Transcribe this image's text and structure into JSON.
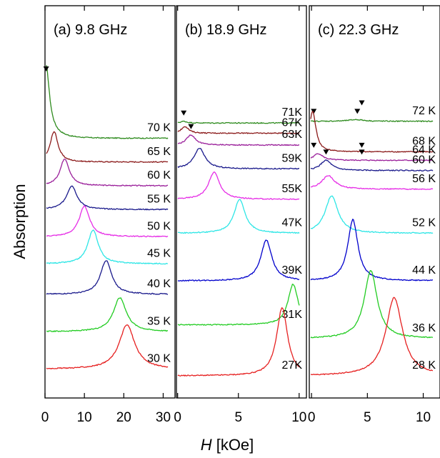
{
  "chart_data": {
    "type": "line",
    "ylabel": "Absorption",
    "xlabel_italic": "H",
    "xlabel_unit": " [kOe]",
    "colors": [
      "#2e8b1e",
      "#8b1a1a",
      "#9a1f9a",
      "#1a1a8c",
      "#e62ee6",
      "#2ee6e6",
      "#0000cc",
      "#22cc22",
      "#e62020"
    ],
    "panels": [
      {
        "title": "(a) 9.8 GHz",
        "xlim": [
          0,
          33
        ],
        "xticks": [
          "0",
          "10",
          "20",
          "30"
        ],
        "xtick_values": [
          0,
          10,
          20,
          30
        ],
        "series": [
          {
            "label": "70 K",
            "color": "#2e8b1e",
            "peak": 0.3,
            "width": 1.0,
            "amp": 0.18,
            "offset": 0.74,
            "tail": 0.04,
            "marker": 0.3
          },
          {
            "label": "65 K",
            "color": "#8b1a1a",
            "peak": 2.3,
            "width": 1.2,
            "amp": 0.09,
            "offset": 0.67
          },
          {
            "label": "60 K",
            "color": "#9a1f9a",
            "peak": 5.0,
            "width": 1.4,
            "amp": 0.08,
            "offset": 0.6
          },
          {
            "label": "55 K",
            "color": "#1a1a8c",
            "peak": 6.8,
            "width": 1.6,
            "amp": 0.07,
            "offset": 0.53
          },
          {
            "label": "50 K",
            "color": "#e62ee6",
            "peak": 10.0,
            "width": 1.6,
            "amp": 0.09,
            "offset": 0.45
          },
          {
            "label": "45 K",
            "color": "#2ee6e6",
            "peak": 12.2,
            "width": 1.6,
            "amp": 0.1,
            "offset": 0.37
          },
          {
            "label": "40 K",
            "color": "#1a1a8c",
            "peak": 15.5,
            "width": 1.7,
            "amp": 0.1,
            "offset": 0.28
          },
          {
            "label": "35 K",
            "color": "#22cc22",
            "peak": 19.0,
            "width": 2.0,
            "amp": 0.1,
            "offset": 0.17
          },
          {
            "label": "30 K",
            "color": "#e62020",
            "peak": 20.8,
            "width": 2.4,
            "amp": 0.13,
            "offset": 0.06
          }
        ]
      },
      {
        "title": "(b) 18.9 GHz",
        "xlim": [
          -0.1,
          10.6
        ],
        "xticks": [
          "0",
          "5",
          "10"
        ],
        "xtick_values": [
          0,
          5,
          10
        ],
        "series": [
          {
            "label": "71K",
            "color": "#2e8b1e",
            "peak": 0.5,
            "width": 0.3,
            "amp": 0.005,
            "offset": 0.785,
            "marker": 0.5
          },
          {
            "label": "67K",
            "color": "#8b1a1a",
            "peak": 0.6,
            "width": 0.35,
            "amp": 0.02,
            "offset": 0.755
          },
          {
            "label": "63K",
            "color": "#9a1f9a",
            "peak": 1.1,
            "width": 0.45,
            "amp": 0.03,
            "offset": 0.72,
            "marker": 1.1
          },
          {
            "label": "59K",
            "color": "#1a1a8c",
            "peak": 1.8,
            "width": 0.55,
            "amp": 0.06,
            "offset": 0.65
          },
          {
            "label": "55K",
            "color": "#e62ee6",
            "peak": 3.0,
            "width": 0.55,
            "amp": 0.08,
            "offset": 0.56
          },
          {
            "label": "47K",
            "color": "#2ee6e6",
            "peak": 5.1,
            "width": 0.55,
            "amp": 0.1,
            "offset": 0.46
          },
          {
            "label": "39K",
            "color": "#0000cc",
            "peak": 7.3,
            "width": 0.55,
            "amp": 0.12,
            "offset": 0.32
          },
          {
            "label": "31K",
            "color": "#22cc22",
            "peak": 9.5,
            "width": 0.5,
            "amp": 0.12,
            "offset": 0.19
          },
          {
            "label": "27K",
            "color": "#e62020",
            "peak": 8.6,
            "width": 0.55,
            "amp": 0.2,
            "offset": 0.04
          }
        ]
      },
      {
        "title": "(c) 22.3 GHz",
        "xlim": [
          -0.2,
          11.5
        ],
        "xticks": [
          "0",
          "5",
          "10"
        ],
        "xtick_values": [
          0,
          5,
          10
        ],
        "series": [
          {
            "label": "72 K",
            "color": "#2e8b1e",
            "peak": 4.0,
            "width": 0.8,
            "amp": 0.005,
            "offset": 0.79,
            "marker": 0.2,
            "marker2": 4.1
          },
          {
            "label": "68 K",
            "color": "#8b1a1a",
            "peak": 0.1,
            "width": 0.35,
            "amp": 0.12,
            "offset": 0.7,
            "marker2": 4.5
          },
          {
            "label": "64 K",
            "color": "#9a1f9a",
            "peak": 0.6,
            "width": 0.5,
            "amp": 0.02,
            "offset": 0.675,
            "marker": 0.2,
            "marker2": 4.5
          },
          {
            "label": "60 K",
            "color": "#1a1a8c",
            "peak": 1.3,
            "width": 0.6,
            "amp": 0.03,
            "offset": 0.645,
            "marker": 1.3,
            "marker2": 4.5
          },
          {
            "label": "56 K",
            "color": "#e62ee6",
            "peak": 1.5,
            "width": 0.7,
            "amp": 0.04,
            "offset": 0.59
          },
          {
            "label": "52 K",
            "color": "#2ee6e6",
            "peak": 1.8,
            "width": 0.7,
            "amp": 0.11,
            "offset": 0.46
          },
          {
            "label": "44 K",
            "color": "#0000cc",
            "peak": 3.7,
            "width": 0.55,
            "amp": 0.18,
            "offset": 0.32
          },
          {
            "label": "36 K",
            "color": "#22cc22",
            "peak": 5.3,
            "width": 0.7,
            "amp": 0.2,
            "offset": 0.15
          },
          {
            "label": "28 K",
            "color": "#e62020",
            "peak": 7.4,
            "width": 0.9,
            "amp": 0.23,
            "offset": 0.04
          }
        ]
      }
    ]
  }
}
